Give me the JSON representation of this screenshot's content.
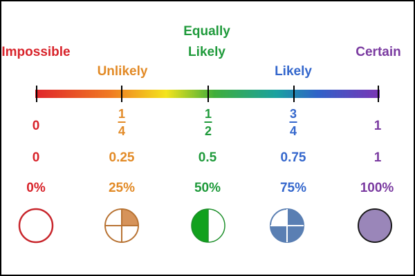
{
  "colors": {
    "impossible": "#d8232a",
    "unlikely": "#e28a26",
    "equally_likely": "#1f9a3b",
    "likely": "#3366cc",
    "certain": "#7a3aa0",
    "quarter_fill": "#d6935a",
    "half_fill": "#11a11d",
    "three_quarter_fill": "#5a7fb3",
    "full_fill": "#9a86b9"
  },
  "points": [
    {
      "key": "impossible",
      "label": "Impossible",
      "fraction": "0",
      "decimal": "0",
      "percent": "0%",
      "value": 0
    },
    {
      "key": "unlikely",
      "label": "Unlikely",
      "fraction_num": "1",
      "fraction_den": "4",
      "decimal": "0.25",
      "percent": "25%",
      "value": 0.25
    },
    {
      "key": "equally_likely",
      "label_line1": "Equally",
      "label_line2": "Likely",
      "fraction_num": "1",
      "fraction_den": "2",
      "decimal": "0.5",
      "percent": "50%",
      "value": 0.5
    },
    {
      "key": "likely",
      "label": "Likely",
      "fraction_num": "3",
      "fraction_den": "4",
      "decimal": "0.75",
      "percent": "75%",
      "value": 0.75
    },
    {
      "key": "certain",
      "label": "Certain",
      "fraction": "1",
      "decimal": "1",
      "percent": "100%",
      "value": 1
    }
  ]
}
